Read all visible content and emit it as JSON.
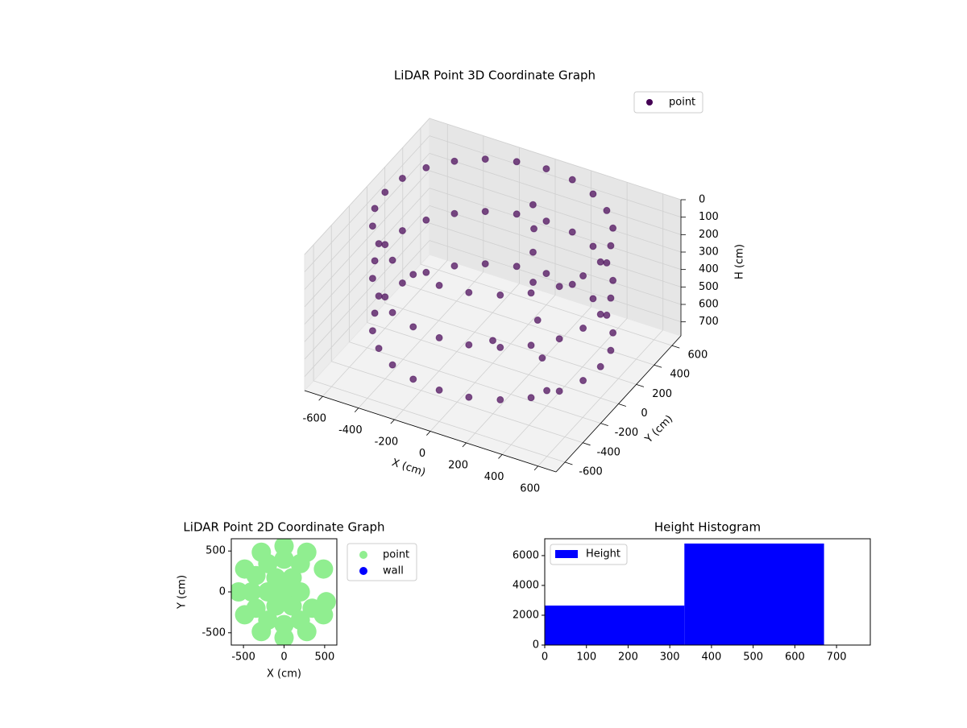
{
  "chart_data": [
    {
      "type": "scatter3d",
      "title": "LiDAR Point 3D Coordinate Graph",
      "xlabel": "X (cm)",
      "ylabel": "Y (cm)",
      "zlabel": "H (cm)",
      "xlim": [
        -700,
        700
      ],
      "ylim": [
        -700,
        700
      ],
      "zlim": [
        0,
        780
      ],
      "z_inverted": true,
      "xticks": [
        -600,
        -400,
        -200,
        0,
        200,
        400,
        600
      ],
      "yticks": [
        -600,
        -400,
        -200,
        0,
        200,
        400,
        600
      ],
      "zticks": [
        0,
        100,
        200,
        300,
        400,
        500,
        600,
        700
      ],
      "grid": true,
      "legend": "upper right",
      "series": [
        {
          "name": "point",
          "color": "#440154",
          "x": [
            600,
            580,
            520,
            424,
            300,
            155,
            0,
            -155,
            -300,
            -424,
            -520,
            -580,
            -600,
            -580,
            -520,
            -424,
            -300,
            -155,
            0,
            155,
            300,
            424,
            520,
            580,
            600,
            580,
            520,
            424,
            300,
            155,
            0,
            -155,
            -300,
            -424,
            -520,
            -580,
            -600,
            -580,
            -520,
            -424,
            -300,
            -155,
            0,
            155,
            300,
            424,
            520,
            580,
            600,
            580,
            520,
            424,
            300,
            155,
            0,
            -155,
            -300,
            -424,
            -520,
            -580,
            -600,
            -580,
            -520,
            -424,
            -300,
            -155,
            0,
            155,
            300,
            424,
            520,
            580,
            50,
            80,
            100,
            150,
            250,
            350,
            450,
            0
          ],
          "y": [
            0,
            155,
            300,
            424,
            520,
            580,
            600,
            580,
            520,
            424,
            300,
            155,
            0,
            -155,
            -300,
            -424,
            -520,
            -580,
            -600,
            -580,
            -520,
            -424,
            -300,
            -155,
            0,
            155,
            300,
            424,
            520,
            580,
            600,
            580,
            520,
            424,
            300,
            155,
            0,
            -155,
            -300,
            -424,
            -520,
            -580,
            -600,
            -580,
            -520,
            -424,
            -300,
            -155,
            0,
            155,
            300,
            424,
            520,
            580,
            600,
            580,
            520,
            424,
            300,
            155,
            0,
            -155,
            -300,
            -424,
            -520,
            -580,
            -600,
            -580,
            -520,
            -424,
            -300,
            -155,
            350,
            300,
            250,
            150,
            0,
            -150,
            -300,
            0
          ],
          "z": [
            0,
            0,
            0,
            0,
            0,
            0,
            0,
            0,
            0,
            0,
            0,
            0,
            0,
            0,
            0,
            0,
            0,
            0,
            0,
            0,
            0,
            0,
            0,
            0,
            300,
            300,
            300,
            300,
            300,
            300,
            300,
            300,
            300,
            300,
            300,
            300,
            300,
            300,
            300,
            300,
            300,
            300,
            300,
            300,
            300,
            300,
            300,
            300,
            600,
            600,
            600,
            600,
            600,
            600,
            600,
            600,
            600,
            600,
            600,
            600,
            600,
            600,
            600,
            600,
            600,
            600,
            600,
            600,
            600,
            600,
            600,
            600,
            50,
            150,
            250,
            350,
            450,
            550,
            620,
            650
          ]
        }
      ]
    },
    {
      "type": "scatter",
      "title": "LiDAR Point 2D Coordinate Graph",
      "xlabel": "X (cm)",
      "ylabel": "Y (cm)",
      "xlim": [
        -650,
        650
      ],
      "ylim": [
        -650,
        650
      ],
      "xticks": [
        -500,
        0,
        500
      ],
      "yticks": [
        -500,
        0,
        500
      ],
      "legend": "outside upper left",
      "series": [
        {
          "name": "point",
          "color": "#90ee90",
          "x": [
            0,
            200,
            100,
            -100,
            -200,
            -100,
            100,
            200,
            0,
            -200,
            -346,
            -400,
            -346,
            -200,
            0,
            200,
            346,
            485,
            280,
            0,
            -280,
            -485,
            -560,
            -485,
            -280,
            0,
            280,
            485,
            520
          ],
          "y": [
            0,
            0,
            173,
            173,
            0,
            -173,
            -173,
            346,
            400,
            346,
            200,
            0,
            -200,
            -346,
            -400,
            -346,
            -200,
            280,
            485,
            560,
            485,
            280,
            0,
            -280,
            -485,
            -560,
            -485,
            -280,
            -120
          ]
        },
        {
          "name": "wall",
          "color": "#0000ff",
          "x": [],
          "y": []
        }
      ]
    },
    {
      "type": "histogram",
      "title": "Height Histogram",
      "xlim": [
        0,
        781
      ],
      "ylim": [
        0,
        7130
      ],
      "xticks": [
        0,
        100,
        200,
        300,
        400,
        500,
        600,
        700
      ],
      "yticks": [
        0,
        2000,
        4000,
        6000
      ],
      "legend": "upper left",
      "bins": [
        0,
        335,
        670
      ],
      "series": [
        {
          "name": "Height",
          "color": "#0000ff",
          "values": [
            2650,
            6810
          ]
        }
      ]
    }
  ]
}
